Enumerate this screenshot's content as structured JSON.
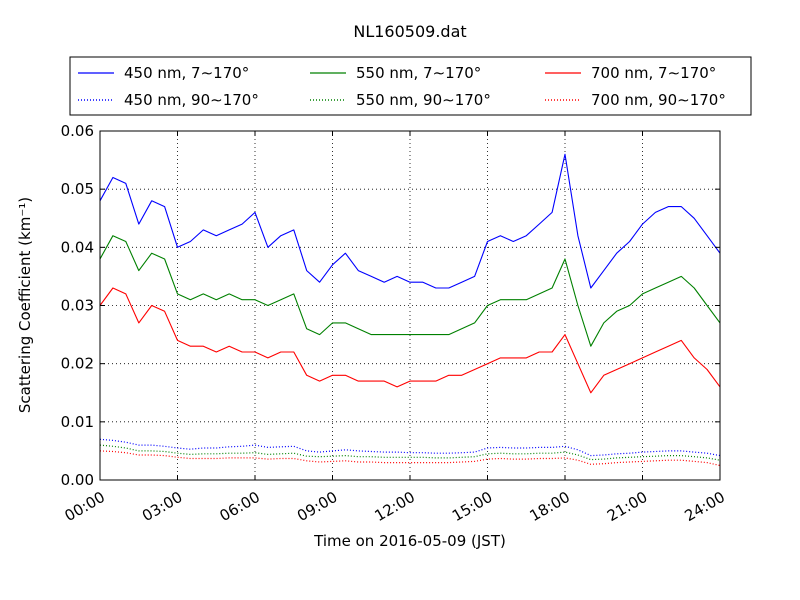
{
  "chart_data": {
    "type": "line",
    "title": "NL160509.dat",
    "xlabel": "Time on 2016-05-09 (JST)",
    "ylabel": "Scattering Coefficient (km⁻¹)",
    "xlim": [
      "00:00",
      "24:00"
    ],
    "ylim": [
      0,
      0.06
    ],
    "x_ticks": [
      "00:00",
      "03:00",
      "06:00",
      "09:00",
      "12:00",
      "15:00",
      "18:00",
      "21:00",
      "24:00"
    ],
    "y_ticks": [
      "0.00",
      "0.01",
      "0.02",
      "0.03",
      "0.04",
      "0.05",
      "0.06"
    ],
    "grid": true,
    "legend_position": "top",
    "x_hours": [
      0.0,
      0.5,
      1.0,
      1.5,
      2.0,
      2.5,
      3.0,
      3.5,
      4.0,
      4.5,
      5.0,
      5.5,
      6.0,
      6.5,
      7.0,
      7.5,
      8.0,
      8.5,
      9.0,
      9.5,
      10.0,
      10.5,
      11.0,
      11.5,
      12.0,
      12.5,
      13.0,
      13.5,
      14.0,
      14.5,
      15.0,
      15.5,
      16.0,
      16.5,
      17.0,
      17.5,
      18.0,
      18.5,
      19.0,
      19.5,
      20.0,
      20.5,
      21.0,
      21.5,
      22.0,
      22.5,
      23.0,
      23.5,
      24.0
    ],
    "series": [
      {
        "name": "450 nm, 7∼170°",
        "color": "#0000ff",
        "style": "solid",
        "values": [
          0.048,
          0.052,
          0.051,
          0.044,
          0.048,
          0.047,
          0.04,
          0.041,
          0.043,
          0.042,
          0.043,
          0.044,
          0.046,
          0.04,
          0.042,
          0.043,
          0.036,
          0.034,
          0.037,
          0.039,
          0.036,
          0.035,
          0.034,
          0.035,
          0.034,
          0.034,
          0.033,
          0.033,
          0.034,
          0.035,
          0.041,
          0.042,
          0.041,
          0.042,
          0.044,
          0.046,
          0.056,
          0.042,
          0.033,
          0.036,
          0.039,
          0.041,
          0.044,
          0.046,
          0.047,
          0.047,
          0.045,
          0.042,
          0.039
        ]
      },
      {
        "name": "450 nm, 90∼170°",
        "color": "#0000ff",
        "style": "dotted",
        "values": [
          0.007,
          0.0068,
          0.0065,
          0.006,
          0.006,
          0.0058,
          0.0055,
          0.0053,
          0.0055,
          0.0055,
          0.0057,
          0.0058,
          0.006,
          0.0056,
          0.0057,
          0.0058,
          0.005,
          0.0048,
          0.005,
          0.0052,
          0.005,
          0.0049,
          0.0048,
          0.0048,
          0.0047,
          0.0047,
          0.0046,
          0.0046,
          0.0047,
          0.0048,
          0.0055,
          0.0056,
          0.0055,
          0.0055,
          0.0056,
          0.0056,
          0.0058,
          0.0052,
          0.0042,
          0.0043,
          0.0045,
          0.0046,
          0.0048,
          0.0049,
          0.005,
          0.005,
          0.0048,
          0.0046,
          0.0042
        ]
      },
      {
        "name": "550 nm, 7∼170°",
        "color": "#008000",
        "style": "solid",
        "values": [
          0.038,
          0.042,
          0.041,
          0.036,
          0.039,
          0.038,
          0.032,
          0.031,
          0.032,
          0.031,
          0.032,
          0.031,
          0.031,
          0.03,
          0.031,
          0.032,
          0.026,
          0.025,
          0.027,
          0.027,
          0.026,
          0.025,
          0.025,
          0.025,
          0.025,
          0.025,
          0.025,
          0.025,
          0.026,
          0.027,
          0.03,
          0.031,
          0.031,
          0.031,
          0.032,
          0.033,
          0.038,
          0.03,
          0.023,
          0.027,
          0.029,
          0.03,
          0.032,
          0.033,
          0.034,
          0.035,
          0.033,
          0.03,
          0.027
        ]
      },
      {
        "name": "550 nm, 90∼170°",
        "color": "#008000",
        "style": "dotted",
        "values": [
          0.006,
          0.0058,
          0.0055,
          0.005,
          0.005,
          0.0049,
          0.0046,
          0.0044,
          0.0045,
          0.0045,
          0.0046,
          0.0046,
          0.0047,
          0.0044,
          0.0045,
          0.0046,
          0.0041,
          0.004,
          0.0041,
          0.0042,
          0.004,
          0.004,
          0.0039,
          0.0039,
          0.0039,
          0.0039,
          0.0038,
          0.0038,
          0.0039,
          0.004,
          0.0045,
          0.0046,
          0.0045,
          0.0045,
          0.0046,
          0.0046,
          0.0048,
          0.0043,
          0.0035,
          0.0036,
          0.0038,
          0.0039,
          0.004,
          0.0041,
          0.0042,
          0.0042,
          0.004,
          0.0038,
          0.0034
        ]
      },
      {
        "name": "700 nm, 7∼170°",
        "color": "#ff0000",
        "style": "solid",
        "values": [
          0.03,
          0.033,
          0.032,
          0.027,
          0.03,
          0.029,
          0.024,
          0.023,
          0.023,
          0.022,
          0.023,
          0.022,
          0.022,
          0.021,
          0.022,
          0.022,
          0.018,
          0.017,
          0.018,
          0.018,
          0.017,
          0.017,
          0.017,
          0.016,
          0.017,
          0.017,
          0.017,
          0.018,
          0.018,
          0.019,
          0.02,
          0.021,
          0.021,
          0.021,
          0.022,
          0.022,
          0.025,
          0.02,
          0.015,
          0.018,
          0.019,
          0.02,
          0.021,
          0.022,
          0.023,
          0.024,
          0.021,
          0.019,
          0.016
        ]
      },
      {
        "name": "700 nm, 90∼170°",
        "color": "#ff0000",
        "style": "dotted",
        "values": [
          0.005,
          0.0049,
          0.0047,
          0.0043,
          0.0043,
          0.0042,
          0.0039,
          0.0037,
          0.0037,
          0.0037,
          0.0038,
          0.0038,
          0.0038,
          0.0036,
          0.0037,
          0.0037,
          0.0033,
          0.0031,
          0.0032,
          0.0033,
          0.0031,
          0.0031,
          0.003,
          0.003,
          0.003,
          0.003,
          0.003,
          0.003,
          0.0031,
          0.0032,
          0.0036,
          0.0037,
          0.0036,
          0.0036,
          0.0037,
          0.0037,
          0.0038,
          0.0034,
          0.0027,
          0.0028,
          0.003,
          0.0031,
          0.0032,
          0.0033,
          0.0034,
          0.0034,
          0.0032,
          0.003,
          0.0025
        ]
      }
    ]
  }
}
